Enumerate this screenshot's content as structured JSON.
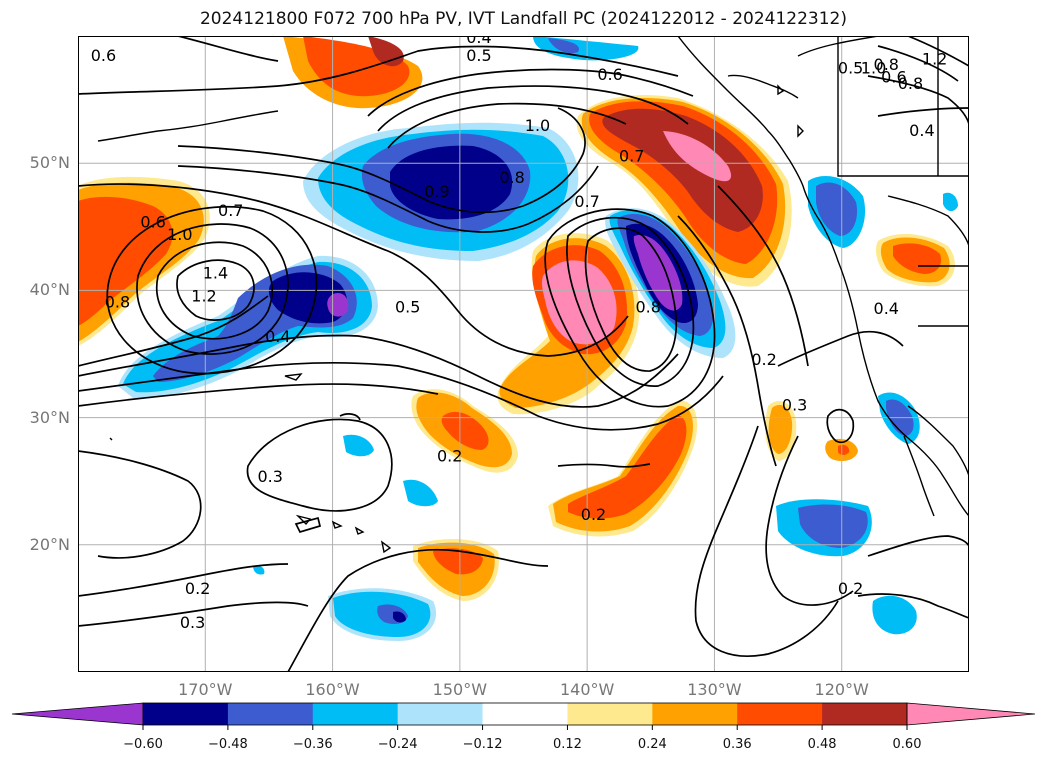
{
  "title": "2024121800 F072 700 hPa PV, IVT Landfall PC (2024122012 - 2024122312)",
  "axes": {
    "lon_labels": [
      "170°W",
      "160°W",
      "150°W",
      "140°W",
      "130°W",
      "120°W"
    ],
    "lat_labels": [
      "50°N",
      "40°N",
      "30°N",
      "20°N"
    ],
    "lon_values": [
      -170,
      -160,
      -150,
      -140,
      -130,
      -120
    ],
    "lat_values": [
      50,
      40,
      30,
      20
    ],
    "lon_range": [
      -180,
      -110
    ],
    "lat_range": [
      10,
      60
    ],
    "grid": true
  },
  "contour_labels": [
    {
      "text": "0.6",
      "lon": -178,
      "lat": 58.4
    },
    {
      "text": "0.4",
      "lon": -148.5,
      "lat": 59.8
    },
    {
      "text": "0.5",
      "lon": -148.5,
      "lat": 58.4
    },
    {
      "text": "0.6",
      "lon": -138.2,
      "lat": 56.9
    },
    {
      "text": "1.0",
      "lon": -143.9,
      "lat": 52.9
    },
    {
      "text": "0.8",
      "lon": -145.9,
      "lat": 48.8
    },
    {
      "text": "0.7",
      "lon": -136.5,
      "lat": 50.5
    },
    {
      "text": "0.9",
      "lon": -151.8,
      "lat": 47.7
    },
    {
      "text": "0.7",
      "lon": -140,
      "lat": 46.9
    },
    {
      "text": "0.6",
      "lon": -174.1,
      "lat": 45.3
    },
    {
      "text": "0.7",
      "lon": -168,
      "lat": 46.2
    },
    {
      "text": "1.0",
      "lon": -172,
      "lat": 44.3
    },
    {
      "text": "1.4",
      "lon": -169.2,
      "lat": 41.3
    },
    {
      "text": "1.2",
      "lon": -170.1,
      "lat": 39.5
    },
    {
      "text": "0.8",
      "lon": -176.9,
      "lat": 39
    },
    {
      "text": "0.4",
      "lon": -164.3,
      "lat": 36.3
    },
    {
      "text": "0.5",
      "lon": -154.1,
      "lat": 38.6
    },
    {
      "text": "0.8",
      "lon": -135.2,
      "lat": 38.6
    },
    {
      "text": "0.2",
      "lon": -126.1,
      "lat": 34.5
    },
    {
      "text": "0.3",
      "lon": -123.7,
      "lat": 30.9
    },
    {
      "text": "0.4",
      "lon": -116.5,
      "lat": 38.5
    },
    {
      "text": "0.3",
      "lon": -164.9,
      "lat": 25.3
    },
    {
      "text": "0.2",
      "lon": -150.8,
      "lat": 26.9
    },
    {
      "text": "0.2",
      "lon": -139.5,
      "lat": 22.3
    },
    {
      "text": "0.2",
      "lon": -170.6,
      "lat": 16.5
    },
    {
      "text": "0.3",
      "lon": -171,
      "lat": 13.8
    },
    {
      "text": "0.2",
      "lon": -119.3,
      "lat": 16.5
    },
    {
      "text": "0.4",
      "lon": -113.7,
      "lat": 52.5
    },
    {
      "text": "0.5",
      "lon": -119.3,
      "lat": 57.4
    },
    {
      "text": "0.6",
      "lon": -115.9,
      "lat": 56.7
    },
    {
      "text": "0.8",
      "lon": -114.6,
      "lat": 56.2
    },
    {
      "text": "1.0",
      "lon": -117.5,
      "lat": 57.4
    },
    {
      "text": "0.8",
      "lon": -116.5,
      "lat": 57.7
    },
    {
      "text": "1.2",
      "lon": -112.7,
      "lat": 58.1
    }
  ],
  "colorbar": {
    "levels": [
      -0.6,
      -0.48,
      -0.36,
      -0.24,
      -0.12,
      0.12,
      0.24,
      0.36,
      0.48,
      0.6
    ],
    "tick_labels": [
      "−0.60",
      "−0.48",
      "−0.36",
      "−0.24",
      "−0.12",
      "0.12",
      "0.24",
      "0.36",
      "0.48",
      "0.60"
    ],
    "colors": [
      "#9a36cf",
      "#00008b",
      "#3c5cd0",
      "#00bdf5",
      "#ade4fb",
      "#ffffff",
      "#ffe98e",
      "#ffa100",
      "#ff4c00",
      "#b12a22",
      "#ff88b5"
    ],
    "extend": "both"
  },
  "colors": {
    "coast": "#000000",
    "contour": "#000000",
    "grid": "#b0b0b0",
    "label": "#777777"
  }
}
